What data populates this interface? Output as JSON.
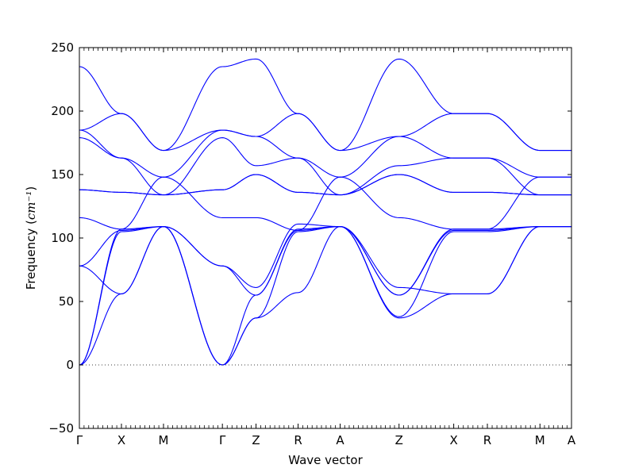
{
  "chart_data": {
    "type": "line",
    "title": "",
    "xlabel": "Wave vector",
    "ylabel": "Frequency",
    "ylabel_unit": "cm⁻¹",
    "ylim": [
      -50,
      250
    ],
    "yticks": [
      -50,
      0,
      50,
      100,
      150,
      200,
      250
    ],
    "grid": false,
    "zero_line": "dotted",
    "line_color": "#0000ff",
    "xlim": [
      0,
      11.7
    ],
    "kpoints": [
      {
        "label": "Γ",
        "x": 0
      },
      {
        "label": "X",
        "x": 1.0
      },
      {
        "label": "M",
        "x": 2.0
      },
      {
        "label": "Γ",
        "x": 3.4
      },
      {
        "label": "Z",
        "x": 4.2
      },
      {
        "label": "R",
        "x": 5.2
      },
      {
        "label": "A",
        "x": 6.2
      },
      {
        "label": "Z",
        "x": 7.6
      },
      {
        "label": "X",
        "x": 8.9
      },
      {
        "label": "R",
        "x": 9.7
      },
      {
        "label": "M",
        "x": 10.95
      },
      {
        "label": "A",
        "x": 11.7
      }
    ],
    "series": [
      {
        "values": [
          [
            0,
            0
          ],
          [
            1.0,
            56
          ],
          [
            2.0,
            109
          ],
          [
            3.4,
            0
          ],
          [
            4.2,
            37
          ],
          [
            5.2,
            57
          ],
          [
            6.2,
            109
          ],
          [
            7.6,
            37
          ],
          [
            8.9,
            56
          ],
          [
            9.7,
            56
          ],
          [
            10.95,
            109
          ],
          [
            11.7,
            109
          ]
        ]
      },
      {
        "values": [
          [
            0,
            0
          ],
          [
            1.0,
            105
          ],
          [
            2.0,
            109
          ],
          [
            3.4,
            0
          ],
          [
            4.2,
            37
          ],
          [
            5.2,
            105
          ],
          [
            6.2,
            109
          ],
          [
            7.6,
            38
          ],
          [
            8.9,
            105
          ],
          [
            9.7,
            105
          ],
          [
            10.95,
            109
          ],
          [
            11.7,
            109
          ]
        ]
      },
      {
        "values": [
          [
            0,
            0
          ],
          [
            1.0,
            107
          ],
          [
            2.0,
            109
          ],
          [
            3.4,
            0
          ],
          [
            4.2,
            55
          ],
          [
            5.2,
            106
          ],
          [
            6.2,
            109
          ],
          [
            7.6,
            55
          ],
          [
            8.9,
            106
          ],
          [
            9.7,
            106
          ],
          [
            10.95,
            109
          ],
          [
            11.7,
            109
          ]
        ]
      },
      {
        "values": [
          [
            0,
            78
          ],
          [
            1.0,
            106
          ],
          [
            2.0,
            109
          ],
          [
            3.4,
            78
          ],
          [
            4.2,
            55
          ],
          [
            5.2,
            107
          ],
          [
            6.2,
            109
          ],
          [
            7.6,
            55
          ],
          [
            8.9,
            107
          ],
          [
            9.7,
            107
          ],
          [
            10.95,
            109
          ],
          [
            11.7,
            109
          ]
        ]
      },
      {
        "values": [
          [
            0,
            78
          ],
          [
            1.0,
            56
          ],
          [
            2.0,
            109
          ],
          [
            3.4,
            78
          ],
          [
            4.2,
            61
          ],
          [
            5.2,
            111
          ],
          [
            6.2,
            109
          ],
          [
            7.6,
            61
          ],
          [
            8.9,
            56
          ],
          [
            9.7,
            56
          ],
          [
            10.95,
            109
          ],
          [
            11.7,
            109
          ]
        ]
      },
      {
        "values": [
          [
            0,
            116
          ],
          [
            1.0,
            107
          ],
          [
            2.0,
            148
          ],
          [
            3.4,
            116
          ],
          [
            4.2,
            116
          ],
          [
            5.2,
            106
          ],
          [
            6.2,
            148
          ],
          [
            7.6,
            116
          ],
          [
            8.9,
            107
          ],
          [
            9.7,
            107
          ],
          [
            10.95,
            148
          ],
          [
            11.7,
            148
          ]
        ]
      },
      {
        "values": [
          [
            0,
            138
          ],
          [
            1.0,
            136
          ],
          [
            2.0,
            134
          ],
          [
            3.4,
            138
          ],
          [
            4.2,
            150
          ],
          [
            5.2,
            136
          ],
          [
            6.2,
            134
          ],
          [
            7.6,
            150
          ],
          [
            8.9,
            136
          ],
          [
            9.7,
            136
          ],
          [
            10.95,
            134
          ],
          [
            11.7,
            134
          ]
        ]
      },
      {
        "values": [
          [
            0,
            138
          ],
          [
            1.0,
            136
          ],
          [
            2.0,
            134
          ],
          [
            3.4,
            138
          ],
          [
            4.2,
            150
          ],
          [
            5.2,
            136
          ],
          [
            6.2,
            134
          ],
          [
            7.6,
            150
          ],
          [
            8.9,
            136
          ],
          [
            9.7,
            136
          ],
          [
            10.95,
            134
          ],
          [
            11.7,
            134
          ]
        ]
      },
      {
        "values": [
          [
            0,
            179
          ],
          [
            1.0,
            163
          ],
          [
            2.0,
            134
          ],
          [
            3.4,
            179
          ],
          [
            4.2,
            157
          ],
          [
            5.2,
            163
          ],
          [
            6.2,
            134
          ],
          [
            7.6,
            157
          ],
          [
            8.9,
            163
          ],
          [
            9.7,
            163
          ],
          [
            10.95,
            134
          ],
          [
            11.7,
            134
          ]
        ]
      },
      {
        "values": [
          [
            0,
            185
          ],
          [
            1.0,
            163
          ],
          [
            2.0,
            148
          ],
          [
            3.4,
            185
          ],
          [
            4.2,
            180
          ],
          [
            5.2,
            163
          ],
          [
            6.2,
            148
          ],
          [
            7.6,
            180
          ],
          [
            8.9,
            163
          ],
          [
            9.7,
            163
          ],
          [
            10.95,
            148
          ],
          [
            11.7,
            148
          ]
        ]
      },
      {
        "values": [
          [
            0,
            185
          ],
          [
            1.0,
            198
          ],
          [
            2.0,
            169
          ],
          [
            3.4,
            185
          ],
          [
            4.2,
            180
          ],
          [
            5.2,
            198
          ],
          [
            6.2,
            169
          ],
          [
            7.6,
            180
          ],
          [
            8.9,
            198
          ],
          [
            9.7,
            198
          ],
          [
            10.95,
            169
          ],
          [
            11.7,
            169
          ]
        ]
      },
      {
        "values": [
          [
            0,
            235
          ],
          [
            1.0,
            198
          ],
          [
            2.0,
            169
          ],
          [
            3.4,
            235
          ],
          [
            4.2,
            241
          ],
          [
            5.2,
            198
          ],
          [
            6.2,
            169
          ],
          [
            7.6,
            241
          ],
          [
            8.9,
            198
          ],
          [
            9.7,
            198
          ],
          [
            10.95,
            169
          ],
          [
            11.7,
            169
          ]
        ]
      }
    ]
  }
}
